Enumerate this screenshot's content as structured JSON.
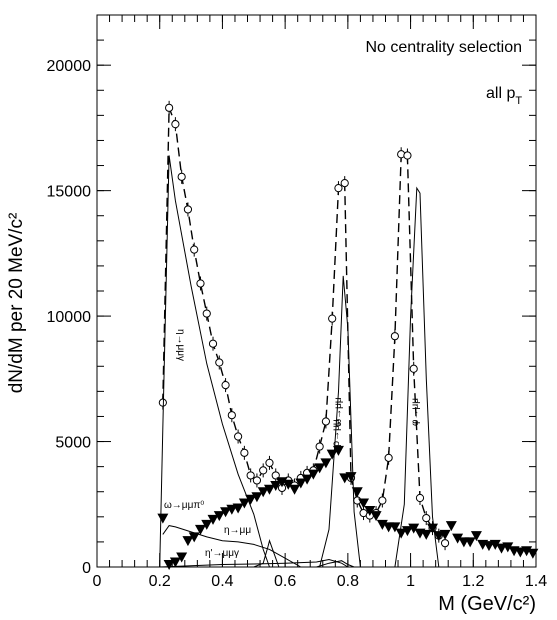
{
  "chart_data": {
    "type": "line",
    "title": "",
    "xlabel": "M (GeV/c²)",
    "ylabel": "dN/dM per 20 MeV/c²",
    "xlim": [
      0,
      1.4
    ],
    "ylim": [
      0,
      22000
    ],
    "x_ticks": [
      0,
      0.2,
      0.4,
      0.6,
      0.8,
      1.0,
      1.2,
      1.4
    ],
    "x_tick_labels": [
      "0",
      "0.2",
      "0.4",
      "0.6",
      "0.8",
      "1",
      "1.2",
      "1.4"
    ],
    "y_ticks": [
      0,
      5000,
      10000,
      15000,
      20000
    ],
    "y_tick_labels": [
      "0",
      "5000",
      "10000",
      "15000",
      "20000"
    ],
    "grid": false,
    "legend": "none",
    "annotations": [
      {
        "text": "No centrality selection"
      },
      {
        "text": "all p",
        "subscript": "T"
      },
      {
        "text": "η→μμγ"
      },
      {
        "text": "ρ→μμ"
      },
      {
        "text": "ω→μμπ⁰"
      },
      {
        "text": "η→μμ"
      },
      {
        "text": "η'→μμγ"
      },
      {
        "text": "ω→μμ"
      },
      {
        "text": "φ→μμ"
      }
    ],
    "series": [
      {
        "style": "open-circles-dashed",
        "x": [
          0.21,
          0.23,
          0.25,
          0.27,
          0.29,
          0.31,
          0.33,
          0.35,
          0.37,
          0.39,
          0.41,
          0.43,
          0.45,
          0.47,
          0.49,
          0.51,
          0.53,
          0.55,
          0.57,
          0.59,
          0.61,
          0.63,
          0.65,
          0.67,
          0.69,
          0.71,
          0.73,
          0.75,
          0.77,
          0.79,
          0.81,
          0.83,
          0.85,
          0.87,
          0.89,
          0.91,
          0.93,
          0.95,
          0.97,
          0.99,
          1.01,
          1.03,
          1.05,
          1.07,
          1.09,
          1.11
        ],
        "y": [
          6550,
          18300,
          17650,
          15550,
          14250,
          12650,
          11300,
          10100,
          8900,
          8150,
          7250,
          6050,
          5200,
          4550,
          3650,
          3450,
          3850,
          4150,
          3650,
          3150,
          3450,
          3250,
          3550,
          3750,
          3850,
          4800,
          5800,
          9900,
          15100,
          15300,
          3550,
          2650,
          2150,
          2050,
          2150,
          2650,
          4350,
          9200,
          16450,
          16400,
          7900,
          2750,
          1950,
          1550,
          1250,
          950
        ]
      },
      {
        "style": "filled-triangles",
        "x": [
          0.21,
          0.23,
          0.25,
          0.27,
          0.29,
          0.31,
          0.33,
          0.35,
          0.37,
          0.39,
          0.41,
          0.43,
          0.45,
          0.47,
          0.49,
          0.51,
          0.53,
          0.55,
          0.57,
          0.59,
          0.61,
          0.63,
          0.65,
          0.67,
          0.69,
          0.71,
          0.73,
          0.75,
          0.77,
          0.79,
          0.81,
          0.83,
          0.85,
          0.87,
          0.89,
          0.91,
          0.93,
          0.95,
          0.97,
          0.99,
          1.01,
          1.03,
          1.05,
          1.07,
          1.09,
          1.11,
          1.13,
          1.15,
          1.17,
          1.19,
          1.21,
          1.23,
          1.25,
          1.27,
          1.29,
          1.31,
          1.33,
          1.35,
          1.37,
          1.39
        ],
        "y": [
          1950,
          100,
          200,
          400,
          1050,
          1200,
          1500,
          1700,
          1900,
          2050,
          2200,
          2300,
          2350,
          2550,
          2700,
          2800,
          3000,
          3100,
          3250,
          3400,
          3300,
          3100,
          3350,
          3500,
          3700,
          3950,
          4150,
          4500,
          4650,
          3550,
          3600,
          3000,
          2550,
          2250,
          2050,
          1700,
          1600,
          1600,
          1350,
          1450,
          1550,
          1350,
          1300,
          1550,
          1250,
          1300,
          1650,
          1150,
          1000,
          1000,
          1250,
          900,
          850,
          900,
          750,
          800,
          650,
          600,
          650,
          550
        ]
      },
      {
        "name": "η→μμγ",
        "style": "thin-line",
        "x": [
          0.2,
          0.21,
          0.23,
          0.25,
          0.3,
          0.35,
          0.4,
          0.45,
          0.5,
          0.53,
          0.55
        ],
        "y": [
          0,
          5500,
          16400,
          14600,
          11200,
          8100,
          5700,
          3700,
          2100,
          700,
          0
        ]
      },
      {
        "name": "ρ→μμ",
        "style": "thin-line",
        "x": [
          0.71,
          0.74,
          0.77,
          0.785,
          0.8,
          0.82,
          0.84
        ],
        "y": [
          0,
          1500,
          7000,
          11600,
          9500,
          2200,
          0
        ]
      },
      {
        "name": "φ→μμ",
        "style": "thin-line",
        "x": [
          0.95,
          0.98,
          1.0,
          1.02,
          1.03,
          1.05,
          1.07,
          1.09
        ],
        "y": [
          0,
          2500,
          10000,
          15100,
          14900,
          7500,
          2000,
          0
        ]
      },
      {
        "name": "ω→μμπ⁰",
        "style": "thin-line",
        "x": [
          0.21,
          0.23,
          0.25,
          0.3,
          0.35,
          0.4,
          0.45,
          0.5,
          0.55,
          0.6,
          0.65
        ],
        "y": [
          1300,
          1650,
          1600,
          1400,
          1200,
          1050,
          1000,
          900,
          700,
          350,
          0
        ]
      },
      {
        "name": "η→μμ",
        "style": "thin-line",
        "x": [
          0.5,
          0.53,
          0.545,
          0.55,
          0.56,
          0.58
        ],
        "y": [
          0,
          150,
          800,
          1050,
          700,
          0
        ]
      },
      {
        "name": "η'→μμγ",
        "style": "thin-line",
        "x": [
          0.2,
          0.3,
          0.4,
          0.5,
          0.6,
          0.7,
          0.74,
          0.78,
          0.8
        ],
        "y": [
          0,
          50,
          100,
          120,
          150,
          200,
          300,
          150,
          0
        ]
      },
      {
        "name": "ω→μμ",
        "style": "thin-line",
        "x": [
          0.7,
          0.74,
          0.78,
          0.8,
          0.82
        ],
        "y": [
          0,
          150,
          250,
          100,
          0
        ]
      }
    ]
  }
}
